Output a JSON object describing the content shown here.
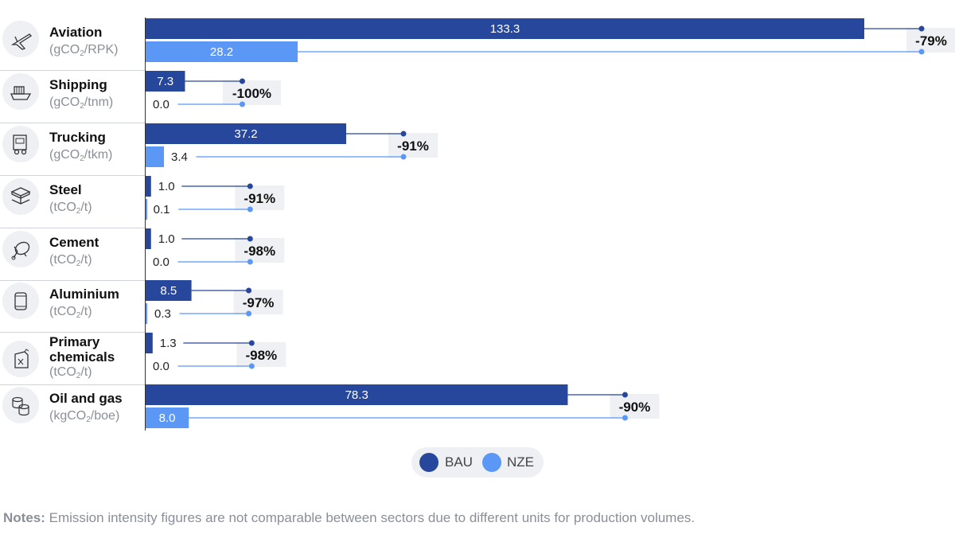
{
  "chart_data": {
    "type": "bar",
    "orientation": "horizontal",
    "series": [
      {
        "name": "BAU",
        "color": "#27479c"
      },
      {
        "name": "NZE",
        "color": "#5b98f5"
      }
    ],
    "sectors": [
      {
        "name": "Aviation",
        "unit_pre": "(gCO",
        "unit_sub": "2",
        "unit_post": "/RPK)",
        "icon": "airplane-icon",
        "bau": 133.3,
        "nze": 28.2,
        "bau_label": "133.3",
        "nze_label": "28.2",
        "change": "-79%"
      },
      {
        "name": "Shipping",
        "unit_pre": "(gCO",
        "unit_sub": "2",
        "unit_post": "/tnm)",
        "icon": "ship-icon",
        "bau": 7.3,
        "nze": 0.0,
        "bau_label": "7.3",
        "nze_label": "0.0",
        "change": "-100%"
      },
      {
        "name": "Trucking",
        "unit_pre": "(gCO",
        "unit_sub": "2",
        "unit_post": "/tkm)",
        "icon": "truck-icon",
        "bau": 37.2,
        "nze": 3.4,
        "bau_label": "37.2",
        "nze_label": "3.4",
        "change": "-91%"
      },
      {
        "name": "Steel",
        "unit_pre": "(tCO",
        "unit_sub": "2",
        "unit_post": "/t)",
        "icon": "steel-beam-icon",
        "bau": 1.0,
        "nze": 0.1,
        "bau_label": "1.0",
        "nze_label": "0.1",
        "change": "-91%"
      },
      {
        "name": "Cement",
        "unit_pre": "(tCO",
        "unit_sub": "2",
        "unit_post": "/t)",
        "icon": "cement-mixer-icon",
        "bau": 1.0,
        "nze": 0.0,
        "bau_label": "1.0",
        "nze_label": "0.0",
        "change": "-98%"
      },
      {
        "name": "Aluminium",
        "unit_pre": "(tCO",
        "unit_sub": "2",
        "unit_post": "/t)",
        "icon": "can-icon",
        "bau": 8.5,
        "nze": 0.3,
        "bau_label": "8.5",
        "nze_label": "0.3",
        "change": "-97%"
      },
      {
        "name": "Primary chemicals",
        "name_lines": [
          "Primary",
          "chemicals"
        ],
        "unit_pre": "(tCO",
        "unit_sub": "2",
        "unit_post": "/t)",
        "icon": "chemical-jug-icon",
        "bau": 1.3,
        "nze": 0.0,
        "bau_label": "1.3",
        "nze_label": "0.0",
        "change": "-98%"
      },
      {
        "name": "Oil and gas",
        "unit_pre": "(kgCO",
        "unit_sub": "2",
        "unit_post": "/boe)",
        "icon": "oil-barrels-icon",
        "bau": 78.3,
        "nze": 8.0,
        "bau_label": "78.3",
        "nze_label": "8.0",
        "change": "-90%"
      }
    ]
  },
  "legend": {
    "bau": "BAU",
    "nze": "NZE"
  },
  "notes": {
    "label": "Notes:",
    "text": " Emission intensity figures are not comparable between sectors due to different units for production volumes."
  }
}
